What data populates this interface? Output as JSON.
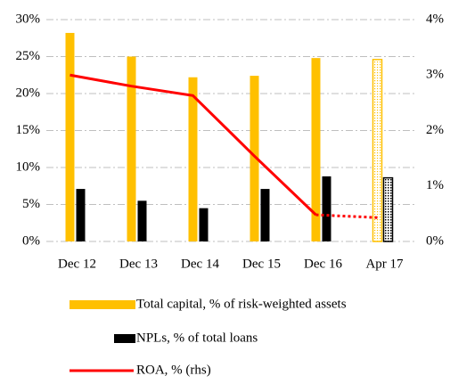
{
  "chart_data": {
    "type": "bar",
    "categories": [
      "Dec 12",
      "Dec 13",
      "Dec 14",
      "Dec 15",
      "Dec 16",
      "Apr 17"
    ],
    "series": [
      {
        "name": "Total capital, % of risk-weighted assets",
        "color": "#ffc000",
        "values": [
          28.2,
          25,
          22.2,
          22.4,
          24.8,
          24.6
        ]
      },
      {
        "name": "NPLs, % of total loans",
        "color": "#000000",
        "values": [
          7.1,
          5.5,
          4.5,
          7.1,
          8.8,
          8.6
        ]
      },
      {
        "name": "ROA, % (rhs)",
        "color": "#ff0000",
        "type": "line",
        "axis": "y2",
        "values": [
          3.0,
          2.8,
          2.63,
          1.54,
          0.48,
          0.43
        ]
      }
    ],
    "ylim": [
      0,
      30
    ],
    "yticks": [
      {
        "value": 0,
        "label": "0%"
      },
      {
        "value": 5,
        "label": "5%"
      },
      {
        "value": 10,
        "label": "10%"
      },
      {
        "value": 15,
        "label": "15%"
      },
      {
        "value": 20,
        "label": "20%"
      },
      {
        "value": 25,
        "label": "25%"
      },
      {
        "value": 30,
        "label": "30%"
      }
    ],
    "y2lim": [
      0,
      4
    ],
    "y2ticks": [
      {
        "value": 0,
        "label": "0%"
      },
      {
        "value": 1,
        "label": "1%"
      },
      {
        "value": 2,
        "label": "2%"
      },
      {
        "value": 3,
        "label": "3%"
      },
      {
        "value": 4,
        "label": "4%"
      }
    ],
    "grid": true,
    "last_point_outlined": true
  }
}
